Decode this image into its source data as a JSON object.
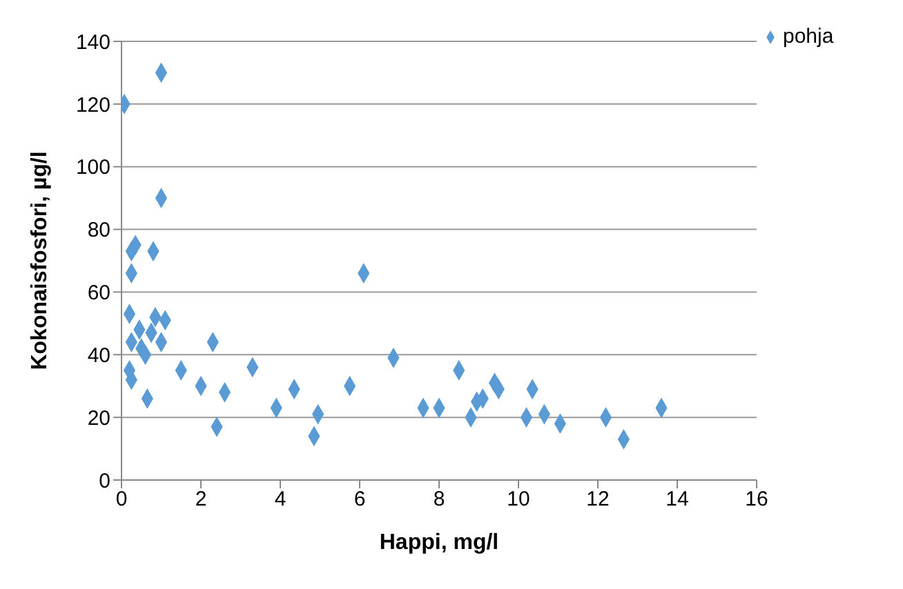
{
  "chart_data": {
    "type": "scatter",
    "xlabel": "Happi, mg/l",
    "ylabel": "Kokonaisfosfori, µg/l",
    "xlim": [
      0,
      16
    ],
    "xticks": [
      0,
      2,
      4,
      6,
      8,
      10,
      12,
      14,
      16
    ],
    "ylim": [
      0,
      140
    ],
    "yticks": [
      0,
      20,
      40,
      60,
      80,
      100,
      120,
      140
    ],
    "grid": "y",
    "legend": "top right",
    "marker": "diamond",
    "series": [
      {
        "name": "pohja",
        "color": "#5b9bd5",
        "x": [
          0.07,
          1.0,
          1.0,
          0.35,
          0.25,
          0.8,
          0.25,
          0.2,
          0.85,
          1.1,
          0.45,
          0.75,
          0.25,
          0.5,
          0.6,
          1.0,
          0.2,
          0.25,
          0.65,
          1.5,
          2.0,
          2.3,
          2.4,
          2.6,
          3.3,
          3.9,
          4.35,
          4.85,
          4.95,
          5.75,
          6.1,
          6.85,
          7.6,
          8.0,
          8.5,
          8.8,
          8.95,
          9.1,
          9.4,
          9.5,
          10.2,
          10.35,
          10.65,
          11.05,
          12.2,
          12.65,
          13.6
        ],
        "values": [
          120,
          130,
          90,
          75,
          73,
          73,
          66,
          53,
          52,
          51,
          48,
          47,
          44,
          42,
          40,
          44,
          35,
          32,
          26,
          35,
          30,
          44,
          17,
          28,
          36,
          23,
          29,
          14,
          21,
          30,
          66,
          39,
          23,
          23,
          35,
          20,
          25,
          26,
          31,
          29,
          20,
          29,
          21,
          18,
          20,
          13,
          23
        ]
      }
    ]
  }
}
